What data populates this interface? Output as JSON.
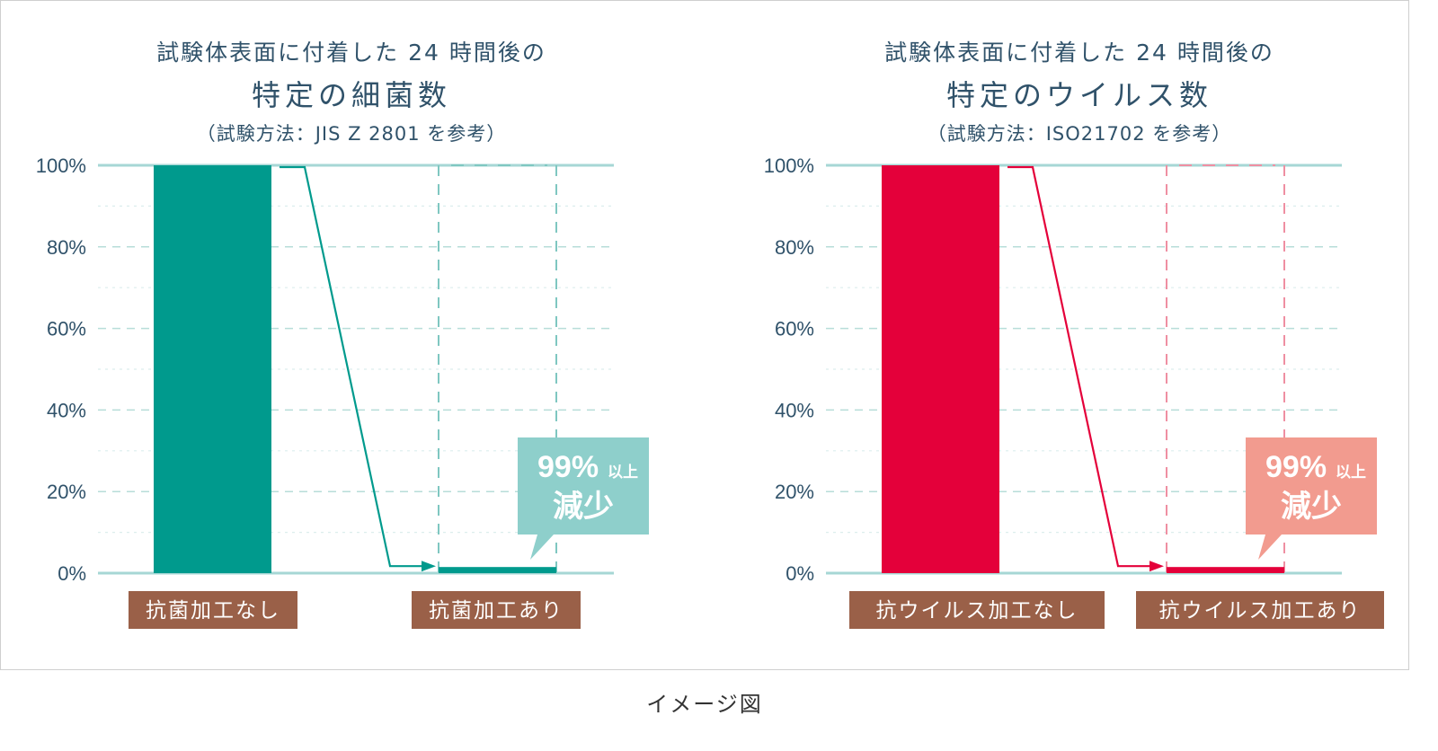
{
  "caption": "イメージ図",
  "chart_data": [
    {
      "type": "bar",
      "title_line1": "試験体表面に付着した 24 時間後の",
      "title_line2": "特定の細菌数",
      "title_line3": "（試験方法：JIS Z 2801 を参考）",
      "categories": [
        "抗菌加工なし",
        "抗菌加工あり"
      ],
      "values": [
        100,
        1.5
      ],
      "ylim": [
        0,
        100
      ],
      "yticks": [
        "0%",
        "20%",
        "40%",
        "60%",
        "80%",
        "100%"
      ],
      "grid": true,
      "callout_top": "99%",
      "callout_small": "以上",
      "callout_bottom": "減少",
      "colors": {
        "bar": "#009a8d",
        "callout": "#8ecfcb",
        "dash": "#7fc7c1",
        "label_bg": "#9a6048"
      }
    },
    {
      "type": "bar",
      "title_line1": "試験体表面に付着した 24 時間後の",
      "title_line2": "特定のウイルス数",
      "title_line3": "（試験方法：ISO21702 を参考）",
      "categories": [
        "抗ウイルス加工なし",
        "抗ウイルス加工あり"
      ],
      "values": [
        100,
        1.5
      ],
      "ylim": [
        0,
        100
      ],
      "yticks": [
        "0%",
        "20%",
        "40%",
        "60%",
        "80%",
        "100%"
      ],
      "grid": true,
      "callout_top": "99%",
      "callout_small": "以上",
      "callout_bottom": "減少",
      "colors": {
        "bar": "#e4003a",
        "callout": "#f29b8f",
        "dash": "#ef8fa2",
        "label_bg": "#9a6048"
      }
    }
  ]
}
